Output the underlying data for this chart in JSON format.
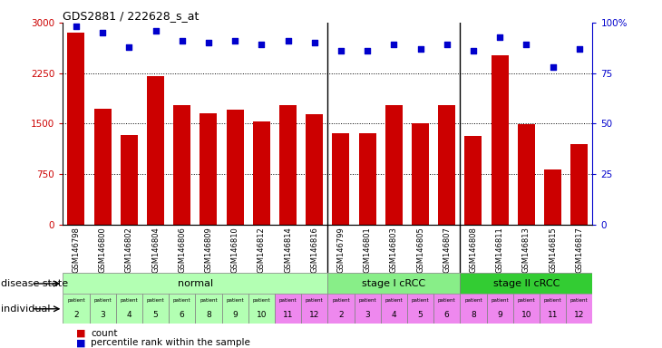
{
  "title": "GDS2881 / 222628_s_at",
  "samples": [
    "GSM146798",
    "GSM146800",
    "GSM146802",
    "GSM146804",
    "GSM146806",
    "GSM146809",
    "GSM146810",
    "GSM146812",
    "GSM146814",
    "GSM146816",
    "GSM146799",
    "GSM146801",
    "GSM146803",
    "GSM146805",
    "GSM146807",
    "GSM146808",
    "GSM146811",
    "GSM146813",
    "GSM146815",
    "GSM146817"
  ],
  "counts": [
    2850,
    1720,
    1330,
    2200,
    1780,
    1650,
    1700,
    1530,
    1780,
    1640,
    1350,
    1350,
    1780,
    1500,
    1780,
    1310,
    2520,
    1490,
    820,
    1200
  ],
  "percentiles": [
    98,
    95,
    88,
    96,
    91,
    90,
    91,
    89,
    91,
    90,
    86,
    86,
    89,
    87,
    89,
    86,
    93,
    89,
    78,
    87
  ],
  "bar_color": "#cc0000",
  "dot_color": "#0000cc",
  "ylim_left": [
    0,
    3000
  ],
  "ylim_right": [
    0,
    100
  ],
  "yticks_left": [
    0,
    750,
    1500,
    2250,
    3000
  ],
  "ytick_labels_left": [
    "0",
    "750",
    "1500",
    "2250",
    "3000"
  ],
  "yticks_right": [
    0,
    25,
    50,
    75,
    100
  ],
  "ytick_labels_right": [
    "0",
    "25",
    "50",
    "75",
    "100%"
  ],
  "sample_bg_color": "#cccccc",
  "disease_groups": [
    {
      "label": "normal",
      "start": 0,
      "end": 10,
      "color": "#b3ffb3"
    },
    {
      "label": "stage I cRCC",
      "start": 10,
      "end": 15,
      "color": "#88ee88"
    },
    {
      "label": "stage II cRCC",
      "start": 15,
      "end": 20,
      "color": "#33cc33"
    }
  ],
  "disease_state_label": "disease state",
  "individual_label": "individual",
  "patient_data": [
    [
      0,
      "2",
      "#b3ffb3"
    ],
    [
      1,
      "3",
      "#b3ffb3"
    ],
    [
      2,
      "4",
      "#b3ffb3"
    ],
    [
      3,
      "5",
      "#b3ffb3"
    ],
    [
      4,
      "6",
      "#b3ffb3"
    ],
    [
      5,
      "8",
      "#b3ffb3"
    ],
    [
      6,
      "9",
      "#b3ffb3"
    ],
    [
      7,
      "10",
      "#b3ffb3"
    ],
    [
      8,
      "11",
      "#ee88ee"
    ],
    [
      9,
      "12",
      "#ee88ee"
    ],
    [
      10,
      "2",
      "#ee88ee"
    ],
    [
      11,
      "3",
      "#ee88ee"
    ],
    [
      12,
      "4",
      "#ee88ee"
    ],
    [
      13,
      "5",
      "#ee88ee"
    ],
    [
      14,
      "6",
      "#ee88ee"
    ],
    [
      15,
      "8",
      "#ee88ee"
    ],
    [
      16,
      "9",
      "#ee88ee"
    ],
    [
      17,
      "10",
      "#ee88ee"
    ],
    [
      18,
      "11",
      "#ee88ee"
    ],
    [
      19,
      "12",
      "#ee88ee"
    ]
  ],
  "legend_count_color": "#cc0000",
  "legend_dot_color": "#0000cc"
}
